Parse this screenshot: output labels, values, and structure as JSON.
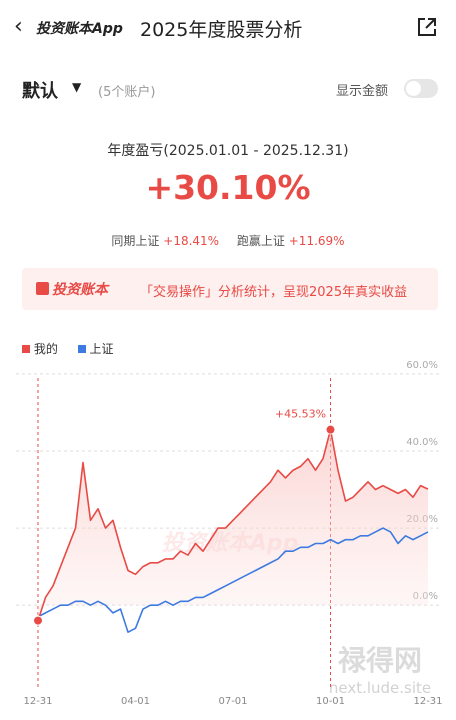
{
  "header": {
    "brand": "投资账本App",
    "title": "2025年度股票分析"
  },
  "account": {
    "name": "默认",
    "count": "(5个账户)",
    "toggle_label": "显示金额"
  },
  "summary": {
    "label": "年度盈亏(2025.01.01 - 2025.12.31)",
    "value": "+30.10%",
    "compare": [
      {
        "label": "同期上证",
        "value": "+18.41%"
      },
      {
        "label": "跑赢上证",
        "value": "+11.69%"
      }
    ]
  },
  "banner": {
    "brand": "投资账本",
    "text": "「交易操作」分析统计，呈现2025年真实收益"
  },
  "watermarks": [
    "投资账本App",
    "禄得网",
    "next.lude.site"
  ],
  "chart_data": {
    "type": "line",
    "categories": [
      "12-31",
      null,
      null,
      null,
      null,
      null,
      null,
      null,
      null,
      null,
      null,
      null,
      null,
      "04-01",
      null,
      null,
      null,
      null,
      null,
      null,
      null,
      null,
      null,
      null,
      null,
      null,
      "07-01",
      null,
      null,
      null,
      null,
      null,
      null,
      null,
      null,
      null,
      null,
      null,
      null,
      "10-01",
      null,
      null,
      null,
      null,
      null,
      null,
      null,
      null,
      null,
      null,
      null,
      null,
      "12-31"
    ],
    "series": [
      {
        "name": "我的",
        "color": "#e84a45",
        "values": [
          -4,
          2,
          5,
          10,
          15,
          20,
          37,
          22,
          25,
          20,
          22,
          15,
          9,
          8,
          10,
          11,
          11,
          12,
          12,
          14,
          13,
          16,
          14,
          17,
          20,
          20,
          22,
          24,
          26,
          28,
          30,
          32,
          35,
          33,
          35,
          36,
          38,
          35,
          38,
          45.53,
          35,
          27,
          28,
          30,
          32,
          30,
          31,
          30,
          29,
          30,
          28,
          31,
          30.1
        ]
      },
      {
        "name": "上证",
        "color": "#3d7be0",
        "values": [
          -3,
          -2,
          -1,
          0,
          0,
          1,
          1,
          0,
          1,
          0,
          -2,
          -1,
          -7,
          -6,
          -1,
          0,
          0,
          1,
          0,
          1,
          1,
          2,
          2,
          3,
          4,
          5,
          6,
          7,
          8,
          9,
          10,
          11,
          12,
          14,
          14,
          15,
          15,
          16,
          16,
          17,
          16,
          17,
          17,
          18,
          18,
          19,
          20,
          19,
          16,
          18,
          17,
          18,
          19
        ]
      }
    ],
    "peak_label": "+45.53%",
    "ylim": [
      -22,
      61
    ],
    "yticks": [
      {
        "value": 0,
        "label": "0.0%"
      },
      {
        "value": 20,
        "label": "20.0%"
      },
      {
        "value": 40,
        "label": "40.0%"
      },
      {
        "value": 60,
        "label": "60.0%"
      }
    ],
    "grid": true
  }
}
